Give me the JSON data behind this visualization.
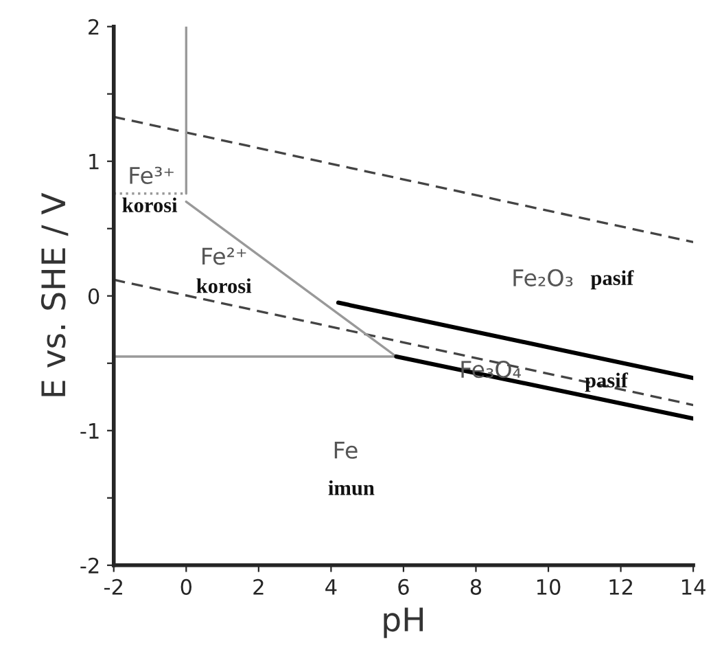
{
  "chart_data": {
    "type": "line",
    "xlabel": "pH",
    "ylabel": "E vs. SHE / V",
    "xlim": [
      -2,
      14
    ],
    "ylim": [
      -2,
      2
    ],
    "xticks": [
      -2,
      0,
      2,
      4,
      6,
      8,
      10,
      12,
      14
    ],
    "yticks": [
      -2,
      {
        "value": -1.5,
        "label": null
      },
      -1,
      {
        "value": -0.5,
        "label": null
      },
      0,
      {
        "value": 0.5,
        "label": null
      },
      1,
      {
        "value": 1.5,
        "label": null
      },
      2
    ],
    "grid": false,
    "series": [
      {
        "x": [
          -2,
          14
        ],
        "values": [
          1.33,
          0.4
        ],
        "color": "#444444",
        "line_style": "dashed"
      },
      {
        "x": [
          -2,
          14
        ],
        "values": [
          0.12,
          -0.81
        ],
        "color": "#444444",
        "line_style": "dashed"
      },
      {
        "x": [
          0,
          0
        ],
        "values": [
          0.76,
          2
        ],
        "color": "#999999",
        "line_style": "solid"
      },
      {
        "x": [
          -2,
          0
        ],
        "values": [
          0.76,
          0.76
        ],
        "color": "#999999",
        "line_style": "dotted"
      },
      {
        "x": [
          0,
          5.8
        ],
        "values": [
          0.7,
          -0.45
        ],
        "color": "#999999",
        "line_style": "solid"
      },
      {
        "x": [
          -2,
          5.8
        ],
        "values": [
          -0.45,
          -0.45
        ],
        "color": "#999999",
        "line_style": "solid"
      },
      {
        "x": [
          4.2,
          14
        ],
        "values": [
          -0.05,
          -0.61
        ],
        "color": "#000000",
        "line_style": "solid"
      },
      {
        "x": [
          5.8,
          14
        ],
        "values": [
          -0.45,
          -0.91
        ],
        "color": "#000000",
        "line_style": "solid"
      }
    ],
    "annotations": [
      "Fe³⁺",
      "korosi",
      "Fe²⁺",
      "korosi",
      "Fe₂O₃",
      "pasif",
      "Fe₃O₄",
      "pasif",
      "Fe",
      "imun"
    ]
  }
}
